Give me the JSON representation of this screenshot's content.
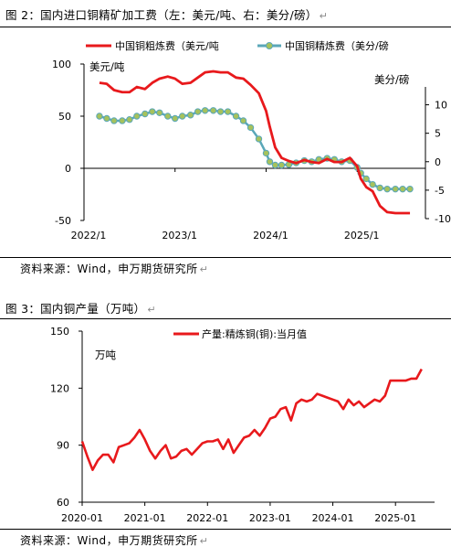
{
  "captions": {
    "fig2": "图 2：国内进口铜精矿加工费（左：美元/吨、右：美分/磅）",
    "fig3": "图 3：国内铜产量（万吨）",
    "return_mark": "↵"
  },
  "sources": {
    "fig2": "资料来源：Wind，申万期货研究所",
    "fig3": "资料来源：Wind，申万期货研究所"
  },
  "colors": {
    "red": "#e8191c",
    "teal": "#5aa7b8",
    "dot_fill": "#a6c25c",
    "axis": "#000000"
  },
  "chart_data": [
    {
      "type": "line",
      "title": "",
      "ylabel_left": "美元/吨",
      "ylabel_right": "美分/磅",
      "ylim_left": [
        -50,
        100
      ],
      "ylim_right": [
        -10,
        12.5
      ],
      "left_ticks": [
        "100",
        "50",
        "0",
        "-50"
      ],
      "right_ticks": [
        "10",
        "5",
        "0",
        "-5",
        "-10"
      ],
      "x_labels": [
        "2022/1",
        "2023/1",
        "2024/1",
        "2025/1"
      ],
      "legend": [
        "中国铜粗炼费（美元/吨",
        "中国铜精炼费（美分/磅"
      ],
      "legend_placement": "top",
      "series": [
        {
          "name": "中国铜粗炼费（美元/吨",
          "axis": "left",
          "x": [
            2022.17,
            2022.25,
            2022.33,
            2022.42,
            2022.5,
            2022.58,
            2022.67,
            2022.75,
            2022.83,
            2022.92,
            2023.0,
            2023.08,
            2023.17,
            2023.25,
            2023.33,
            2023.42,
            2023.5,
            2023.58,
            2023.67,
            2023.75,
            2023.83,
            2023.92,
            2024.0,
            2024.04,
            2024.1,
            2024.17,
            2024.25,
            2024.33,
            2024.42,
            2024.5,
            2024.58,
            2024.67,
            2024.75,
            2024.83,
            2024.92,
            2025.0,
            2025.04,
            2025.1,
            2025.17,
            2025.25,
            2025.33,
            2025.42,
            2025.5,
            2025.58
          ],
          "y": [
            82,
            81,
            75,
            73,
            73,
            78,
            76,
            82,
            86,
            88,
            86,
            81,
            82,
            87,
            92,
            93,
            92,
            92,
            87,
            86,
            80,
            72,
            55,
            40,
            20,
            10,
            7,
            5,
            8,
            6,
            5,
            9,
            6,
            6,
            10,
            2,
            -10,
            -18,
            -22,
            -36,
            -42,
            -43,
            -43,
            -43
          ]
        },
        {
          "name": "中国铜精炼费（美分/磅",
          "axis": "right",
          "x": [
            2022.17,
            2022.25,
            2022.33,
            2022.42,
            2022.5,
            2022.58,
            2022.67,
            2022.75,
            2022.83,
            2022.92,
            2023.0,
            2023.08,
            2023.17,
            2023.25,
            2023.33,
            2023.42,
            2023.5,
            2023.58,
            2023.67,
            2023.75,
            2023.83,
            2023.92,
            2024.0,
            2024.04,
            2024.1,
            2024.17,
            2024.25,
            2024.33,
            2024.42,
            2024.5,
            2024.58,
            2024.67,
            2024.75,
            2024.83,
            2024.92,
            2025.0,
            2025.04,
            2025.1,
            2025.17,
            2025.25,
            2025.33,
            2025.42,
            2025.5,
            2025.58
          ],
          "y": [
            8.0,
            7.6,
            7.2,
            7.2,
            7.4,
            8.0,
            8.4,
            8.8,
            8.6,
            8.0,
            7.6,
            8.0,
            8.2,
            8.8,
            9.0,
            9.0,
            8.8,
            8.8,
            8.0,
            7.2,
            6.0,
            4.0,
            1.5,
            0.0,
            -0.6,
            -0.6,
            -0.5,
            -0.2,
            0.2,
            0.0,
            0.4,
            0.6,
            0.4,
            0.0,
            0.2,
            -1.0,
            -2.0,
            -3.0,
            -4.0,
            -4.6,
            -4.8,
            -4.8,
            -4.8,
            -4.8
          ]
        }
      ]
    },
    {
      "type": "line",
      "title": "",
      "ylabel": "万吨",
      "ylim": [
        60,
        150
      ],
      "y_ticks": [
        "150",
        "120",
        "90",
        "60"
      ],
      "x_labels": [
        "2020-01",
        "2021-01",
        "2022-01",
        "2023-01",
        "2024-01",
        "2025-01"
      ],
      "legend": [
        "产量:精炼铜(铜):当月值"
      ],
      "legend_placement": "top",
      "series": [
        {
          "name": "产量:精炼铜(铜):当月值",
          "x": [
            "2020-01",
            "2020-02",
            "2020-03",
            "2020-04",
            "2020-05",
            "2020-06",
            "2020-07",
            "2020-08",
            "2020-09",
            "2020-10",
            "2020-11",
            "2020-12",
            "2021-01",
            "2021-02",
            "2021-03",
            "2021-04",
            "2021-05",
            "2021-06",
            "2021-07",
            "2021-08",
            "2021-09",
            "2021-10",
            "2021-11",
            "2021-12",
            "2022-01",
            "2022-02",
            "2022-03",
            "2022-04",
            "2022-05",
            "2022-06",
            "2022-07",
            "2022-08",
            "2022-09",
            "2022-10",
            "2022-11",
            "2022-12",
            "2023-01",
            "2023-02",
            "2023-03",
            "2023-04",
            "2023-05",
            "2023-06",
            "2023-07",
            "2023-08",
            "2023-09",
            "2023-10",
            "2023-11",
            "2023-12",
            "2024-01",
            "2024-02",
            "2024-03",
            "2024-04",
            "2024-05",
            "2024-06",
            "2024-07",
            "2024-08",
            "2024-09",
            "2024-10",
            "2024-11",
            "2024-12",
            "2025-01",
            "2025-02",
            "2025-03",
            "2025-04",
            "2025-05",
            "2025-06"
          ],
          "values": [
            92,
            84,
            77,
            82,
            85,
            85,
            81,
            89,
            90,
            91,
            94,
            98,
            93,
            87,
            83,
            87,
            90,
            83,
            84,
            87,
            88,
            85,
            88,
            91,
            92,
            92,
            93,
            88,
            93,
            86,
            90,
            94,
            95,
            98,
            95,
            99,
            104,
            105,
            109,
            110,
            103,
            112,
            114,
            113,
            114,
            117,
            116,
            115,
            114,
            113,
            109,
            114,
            111,
            113,
            110,
            112,
            114,
            113,
            116,
            124,
            124,
            124,
            124,
            125,
            125,
            130
          ]
        }
      ]
    }
  ]
}
